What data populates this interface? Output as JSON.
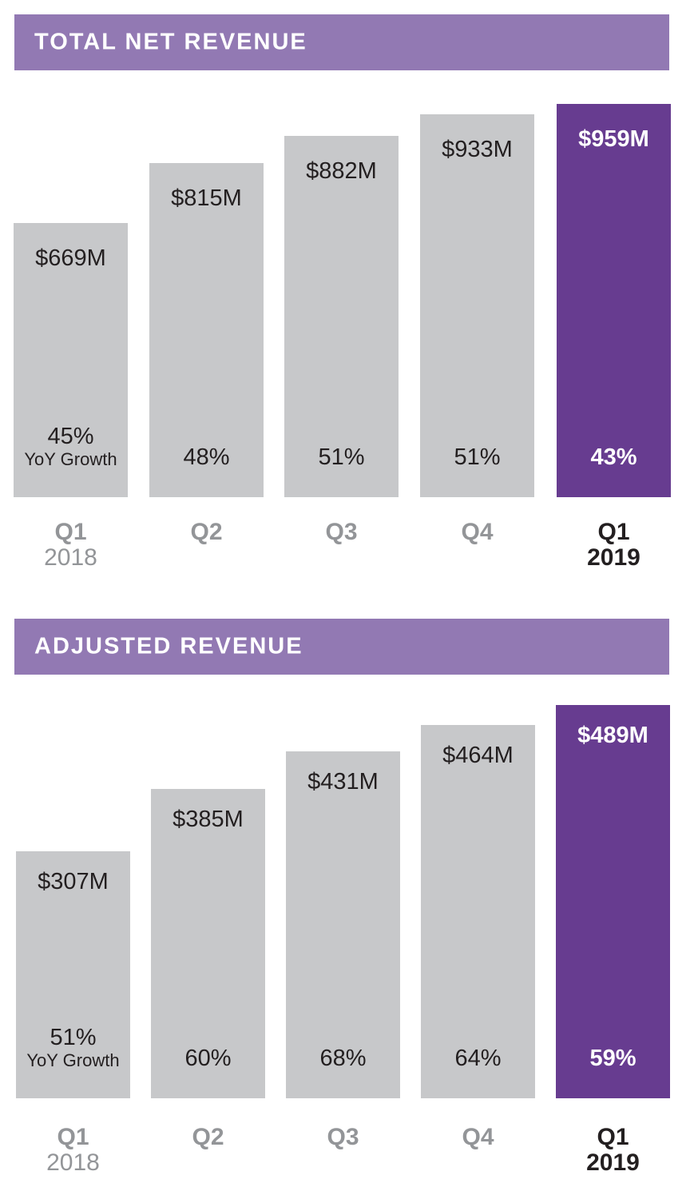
{
  "colors": {
    "banner": "#9279b3",
    "bar": "#c7c8ca",
    "highlight_bar": "#673c90",
    "quarter_label": "#939598",
    "highlight_label": "#231f20"
  },
  "chart_data": [
    {
      "type": "bar",
      "title": "TOTAL NET REVENUE",
      "categories": [
        "Q1 2018",
        "Q2",
        "Q3",
        "Q4",
        "Q1 2019"
      ],
      "quarters": [
        "Q1",
        "Q2",
        "Q3",
        "Q4",
        "Q1"
      ],
      "years": [
        "2018",
        "",
        "",
        "",
        "2019"
      ],
      "values": [
        669,
        815,
        882,
        933,
        959
      ],
      "value_labels": [
        "$669M",
        "$815M",
        "$882M",
        "$933M",
        "$959M"
      ],
      "yoy_growth": [
        "45%",
        "48%",
        "51%",
        "51%",
        "43%"
      ],
      "growth_caption": "YoY Growth",
      "units": "$M",
      "highlight_index": 4,
      "xlabel": "",
      "ylabel": "",
      "grid": false,
      "legend": "none"
    },
    {
      "type": "bar",
      "title": "ADJUSTED REVENUE",
      "categories": [
        "Q1 2018",
        "Q2",
        "Q3",
        "Q4",
        "Q1 2019"
      ],
      "quarters": [
        "Q1",
        "Q2",
        "Q3",
        "Q4",
        "Q1"
      ],
      "years": [
        "2018",
        "",
        "",
        "",
        "2019"
      ],
      "values": [
        307,
        385,
        431,
        464,
        489
      ],
      "value_labels": [
        "$307M",
        "$385M",
        "$431M",
        "$464M",
        "$489M"
      ],
      "yoy_growth": [
        "51%",
        "60%",
        "68%",
        "64%",
        "59%"
      ],
      "growth_caption": "YoY Growth",
      "units": "$M",
      "highlight_index": 4,
      "xlabel": "",
      "ylabel": "",
      "grid": false,
      "legend": "none"
    }
  ]
}
